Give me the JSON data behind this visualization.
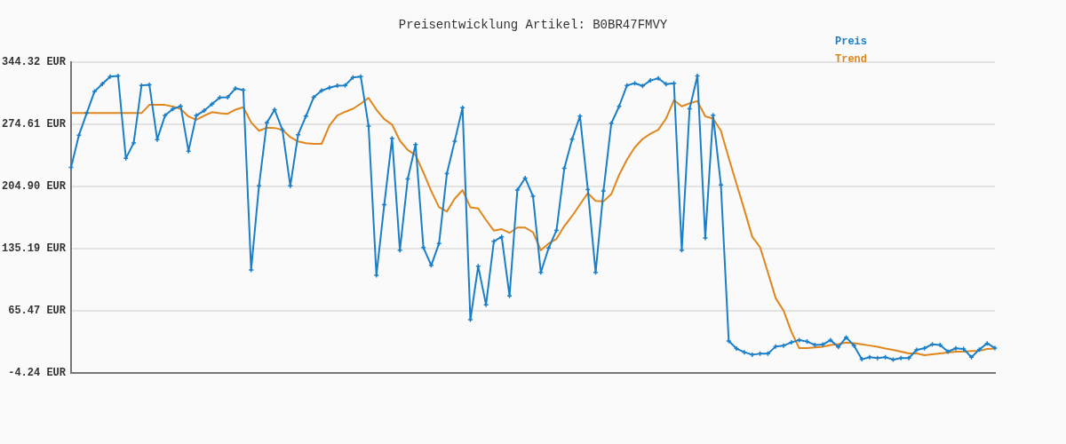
{
  "chart_data": {
    "type": "line",
    "title": "Preisentwicklung Artikel: B0BR47FMVY",
    "categories": [
      null,
      null,
      null,
      null,
      null,
      null,
      null,
      null,
      null,
      null,
      null,
      null,
      null,
      null,
      null,
      null,
      null,
      null,
      null,
      null,
      null,
      null,
      null,
      null,
      null,
      null,
      null,
      null,
      null,
      null,
      null,
      null,
      null,
      null,
      null,
      null,
      null,
      null,
      null,
      null,
      null,
      null,
      null,
      null,
      null,
      null,
      null,
      null,
      null,
      null,
      null,
      null,
      null,
      null,
      null,
      null,
      null,
      null,
      null,
      null,
      null,
      null,
      null,
      null,
      null,
      null,
      null,
      null,
      null,
      null,
      null,
      null,
      null,
      null,
      null,
      null,
      null,
      null,
      null,
      null,
      null,
      null,
      null,
      null,
      null,
      null,
      null,
      null,
      null,
      null,
      null,
      null,
      null,
      null,
      null,
      null,
      null,
      null,
      null,
      null,
      null,
      null,
      null,
      null,
      null,
      null,
      null,
      null,
      null,
      null,
      null,
      null,
      null,
      null,
      null,
      null,
      null,
      null,
      null
    ],
    "series": [
      {
        "name": "Preis",
        "color": "#1a7fc8",
        "marker": "cross",
        "values": [
          226.4,
          262.3,
          287.2,
          311.5,
          320.0,
          328.2,
          328.9,
          236.4,
          253.8,
          318.3,
          319.0,
          257.5,
          284.5,
          291.7,
          295.1,
          244.6,
          284.5,
          290.0,
          297.2,
          304.7,
          305.0,
          314.9,
          312.9,
          111.3,
          205.6,
          276.3,
          291.0,
          268.2,
          205.6,
          263.0,
          283.8,
          305.0,
          312.5,
          315.6,
          318.0,
          318.3,
          327.2,
          328.2,
          272.6,
          105.2,
          184.4,
          258.9,
          133.4,
          213.4,
          252.0,
          136.5,
          116.4,
          141.0,
          219.3,
          255.8,
          293.4,
          55.5,
          115.4,
          72.3,
          143.4,
          148.5,
          82.2,
          200.8,
          214.4,
          193.9,
          108.5,
          135.9,
          155.7,
          225.4,
          257.9,
          283.8,
          201.5,
          108.5,
          199.8,
          275.6,
          294.8,
          318.3,
          320.7,
          317.7,
          323.8,
          326.2,
          319.7,
          320.7,
          133.4,
          292.0,
          328.9,
          147.2,
          284.8,
          206.6,
          31.6,
          23.1,
          19.0,
          16.3,
          17.3,
          17.3,
          25.5,
          26.5,
          30.0,
          32.7,
          31.0,
          27.2,
          27.6,
          32.7,
          24.8,
          35.7,
          26.5,
          11.1,
          13.5,
          12.5,
          13.5,
          10.8,
          12.5,
          12.5,
          21.7,
          23.4,
          27.9,
          27.2,
          19.7,
          23.4,
          22.7,
          13.5,
          22.0,
          28.9,
          23.7
        ]
      },
      {
        "name": "Trend",
        "color": "#e0861c",
        "marker": "none",
        "values": [
          287.2,
          287.2,
          287.2,
          287.2,
          287.2,
          287.2,
          287.2,
          287.2,
          287.2,
          287.2,
          296.4,
          296.4,
          296.4,
          294.6,
          291.7,
          283.4,
          279.7,
          284.3,
          288.2,
          287.0,
          286.4,
          291.1,
          293.8,
          276.7,
          267.4,
          270.8,
          270.5,
          268.5,
          260.2,
          255.4,
          253.4,
          252.7,
          252.7,
          273.2,
          284.5,
          288.6,
          292.0,
          297.8,
          304.3,
          291.0,
          280.4,
          274.3,
          256.2,
          245.9,
          240.1,
          220.6,
          199.8,
          181.6,
          176.9,
          191.2,
          200.8,
          181.6,
          180.3,
          167.3,
          155.4,
          157.0,
          152.9,
          158.8,
          158.8,
          153.6,
          133.4,
          141.0,
          146.1,
          160.5,
          171.8,
          184.7,
          197.4,
          188.8,
          188.1,
          196.4,
          217.9,
          235.0,
          248.7,
          258.2,
          264.0,
          268.5,
          281.1,
          301.6,
          294.8,
          298.2,
          300.6,
          283.5,
          281.1,
          267.4,
          236.7,
          207.7,
          178.6,
          148.5,
          136.9,
          108.5,
          79.5,
          65.8,
          41.9,
          23.7,
          23.7,
          24.4,
          25.1,
          27.2,
          28.2,
          29.9,
          29.2,
          27.9,
          26.5,
          25.1,
          23.1,
          21.7,
          19.7,
          17.6,
          17.6,
          15.6,
          16.6,
          17.6,
          18.6,
          19.7,
          19.7,
          20.3,
          20.7,
          22.7,
          23.1
        ]
      }
    ],
    "ylim": [
      -4.24,
      344.32
    ],
    "yticks": [
      {
        "value": -4.24,
        "label": "-4.24 EUR"
      },
      {
        "value": 65.47,
        "label": "65.47 EUR"
      },
      {
        "value": 135.19,
        "label": "135.19 EUR"
      },
      {
        "value": 204.9,
        "label": "204.90 EUR"
      },
      {
        "value": 274.61,
        "label": "274.61 EUR"
      },
      {
        "value": 344.32,
        "label": "344.32 EUR"
      }
    ],
    "grid": "y",
    "legend": "top right",
    "tick_labels": "y",
    "line_style": "solid"
  }
}
